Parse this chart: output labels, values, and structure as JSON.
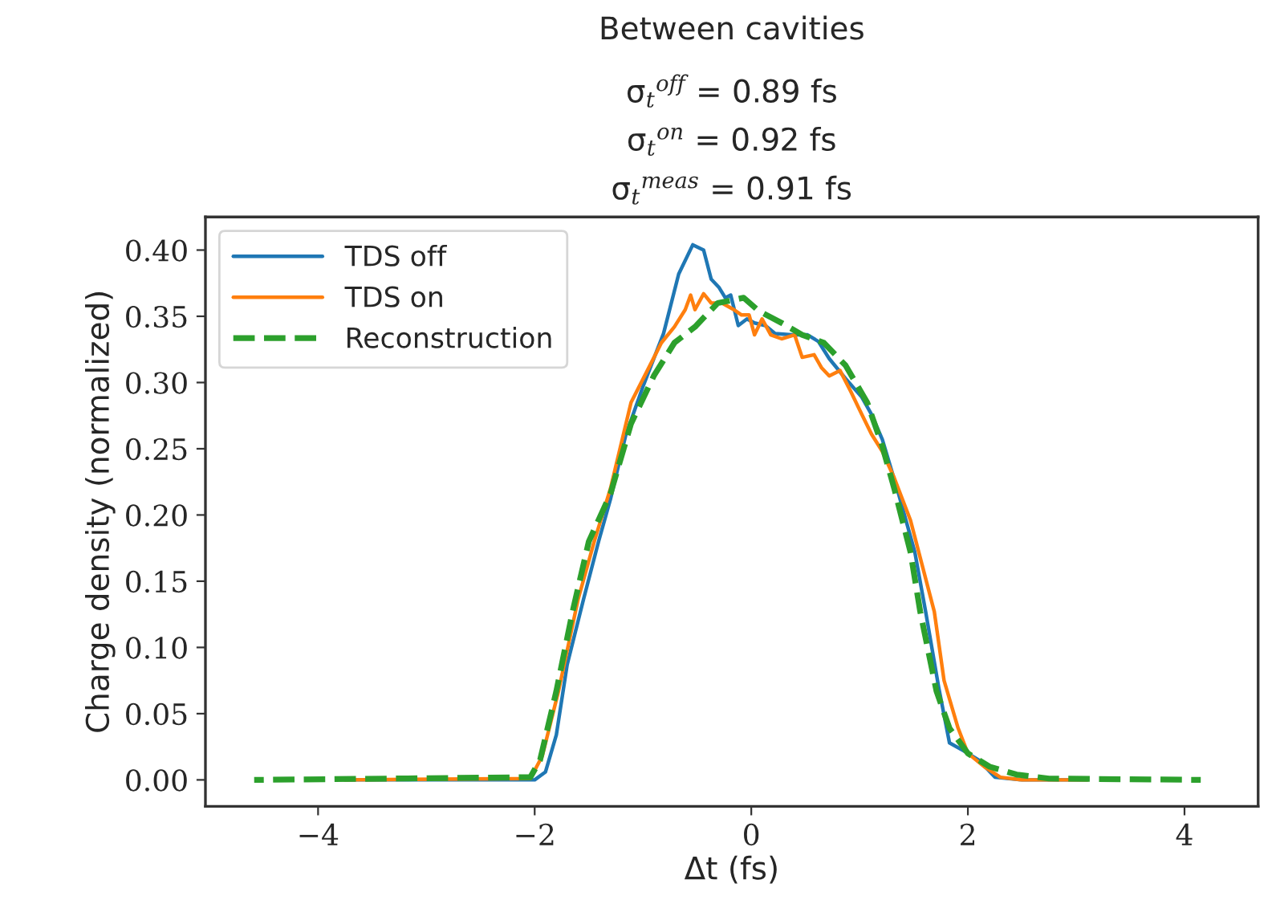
{
  "chart_data": {
    "type": "line",
    "title": "Between cavities",
    "annotations": [
      "σ$_{t}$$^{off}$ = 0.89 fs",
      "σ$_{t}$$^{on}$ = 0.92 fs",
      "σ$_{t}$$^{meas}$ = 0.91 fs"
    ],
    "xlabel": "Δt (fs)",
    "ylabel": "Charge density (normalized)",
    "series": [
      {
        "name": "TDS off",
        "color": "#1f77b4",
        "line_style": "solid",
        "x": [
          -3.75,
          -2.0,
          -1.9,
          -1.8,
          -1.7,
          -1.55,
          -1.41,
          -1.3,
          -1.16,
          -1.0,
          -0.81,
          -0.67,
          -0.54,
          -0.44,
          -0.37,
          -0.3,
          -0.24,
          -0.19,
          -0.12,
          -0.04,
          0.03,
          0.13,
          0.22,
          0.37,
          0.52,
          0.62,
          0.72,
          0.87,
          1.02,
          1.11,
          1.21,
          1.36,
          1.51,
          1.61,
          1.73,
          1.83,
          1.96,
          2.1,
          2.25,
          2.5,
          3.1
        ],
        "values": [
          0,
          0,
          0.006,
          0.034,
          0.087,
          0.136,
          0.18,
          0.212,
          0.26,
          0.297,
          0.337,
          0.382,
          0.404,
          0.4,
          0.378,
          0.372,
          0.364,
          0.366,
          0.343,
          0.348,
          0.345,
          0.343,
          0.337,
          0.336,
          0.336,
          0.331,
          0.318,
          0.303,
          0.289,
          0.276,
          0.257,
          0.216,
          0.172,
          0.127,
          0.07,
          0.028,
          0.022,
          0.015,
          0.002,
          0,
          0
        ]
      },
      {
        "name": "TDS on",
        "color": "#ff7f0e",
        "line_style": "solid",
        "x": [
          -3.75,
          -2.04,
          -1.93,
          -1.78,
          -1.6,
          -1.45,
          -1.3,
          -1.11,
          -0.96,
          -0.83,
          -0.71,
          -0.61,
          -0.56,
          -0.52,
          -0.44,
          -0.37,
          -0.27,
          -0.16,
          -0.09,
          -0.02,
          0.03,
          0.1,
          0.18,
          0.28,
          0.4,
          0.47,
          0.58,
          0.65,
          0.72,
          0.82,
          0.92,
          1.02,
          1.11,
          1.21,
          1.32,
          1.47,
          1.61,
          1.69,
          1.78,
          1.91,
          2.0,
          2.15,
          2.3,
          2.5,
          3.1
        ],
        "values": [
          0,
          0.001,
          0.018,
          0.067,
          0.136,
          0.18,
          0.22,
          0.285,
          0.309,
          0.33,
          0.342,
          0.355,
          0.366,
          0.355,
          0.367,
          0.36,
          0.36,
          0.355,
          0.351,
          0.351,
          0.336,
          0.348,
          0.336,
          0.333,
          0.336,
          0.319,
          0.321,
          0.311,
          0.305,
          0.309,
          0.293,
          0.276,
          0.261,
          0.248,
          0.228,
          0.196,
          0.152,
          0.127,
          0.075,
          0.039,
          0.02,
          0.01,
          0.002,
          0,
          0
        ]
      },
      {
        "name": "Reconstruction",
        "color": "#2ca02c",
        "line_style": "dashed",
        "x": [
          -4.59,
          -2.04,
          -1.95,
          -1.8,
          -1.65,
          -1.5,
          -1.3,
          -1.11,
          -0.9,
          -0.71,
          -0.52,
          -0.31,
          -0.07,
          0.07,
          0.28,
          0.47,
          0.67,
          0.87,
          1.07,
          1.21,
          1.32,
          1.47,
          1.56,
          1.71,
          1.83,
          2.0,
          2.2,
          2.45,
          2.75,
          4.15
        ],
        "values": [
          0,
          0.002,
          0.015,
          0.067,
          0.127,
          0.18,
          0.216,
          0.269,
          0.305,
          0.33,
          0.342,
          0.36,
          0.364,
          0.354,
          0.345,
          0.336,
          0.33,
          0.313,
          0.285,
          0.252,
          0.22,
          0.172,
          0.127,
          0.067,
          0.039,
          0.02,
          0.01,
          0.004,
          0.001,
          0
        ]
      }
    ],
    "xlim": [
      -5.04,
      4.68
    ],
    "ylim": [
      -0.02,
      0.425
    ],
    "xticks": [
      {
        "value": -4,
        "label": "−4"
      },
      {
        "value": -2,
        "label": "−2"
      },
      0,
      2,
      4
    ],
    "yticks": [
      {
        "value": 0,
        "label": "0.00"
      },
      {
        "value": 0.05,
        "label": "0.05"
      },
      {
        "value": 0.1,
        "label": "0.10"
      },
      {
        "value": 0.15,
        "label": "0.15"
      },
      {
        "value": 0.2,
        "label": "0.20"
      },
      {
        "value": 0.25,
        "label": "0.25"
      },
      {
        "value": 0.3,
        "label": "0.30"
      },
      {
        "value": 0.35,
        "label": "0.35"
      },
      {
        "value": 0.4,
        "label": "0.40"
      }
    ],
    "grid": false,
    "legend": "top left"
  }
}
